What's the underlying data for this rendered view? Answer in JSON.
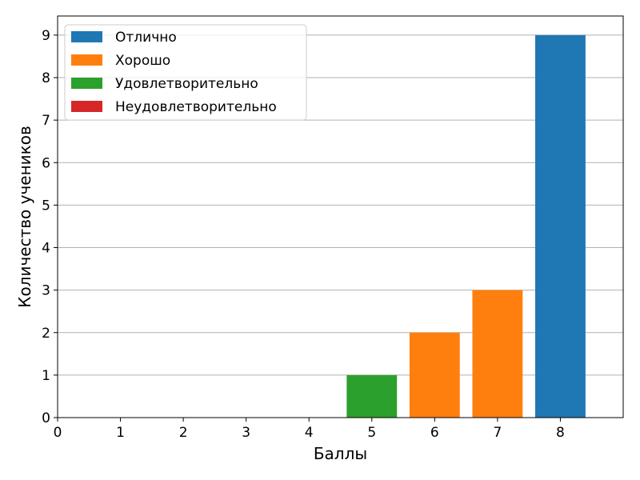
{
  "chart_data": {
    "type": "bar",
    "x": [
      5,
      6,
      7,
      8
    ],
    "values": [
      1,
      2,
      3,
      9
    ],
    "bar_categories": [
      "Удовлетворительно",
      "Хорошо",
      "Хорошо",
      "Отлично"
    ],
    "xlabel": "Баллы",
    "ylabel": "Количество учеников",
    "xticks": [
      0,
      1,
      2,
      3,
      4,
      5,
      6,
      7,
      8
    ],
    "yticks": [
      0,
      1,
      2,
      3,
      4,
      5,
      6,
      7,
      8,
      9
    ],
    "xlim": [
      0,
      9
    ],
    "ylim": [
      0,
      9.45
    ],
    "grid": "horizontal",
    "legend_position": "top-left",
    "legend": [
      {
        "label": "Отлично",
        "color": "#1f77b4"
      },
      {
        "label": "Хорошо",
        "color": "#ff7f0e"
      },
      {
        "label": "Удовлетворительно",
        "color": "#2ca02c"
      },
      {
        "label": "Неудовлетворительно",
        "color": "#d62728"
      }
    ]
  }
}
